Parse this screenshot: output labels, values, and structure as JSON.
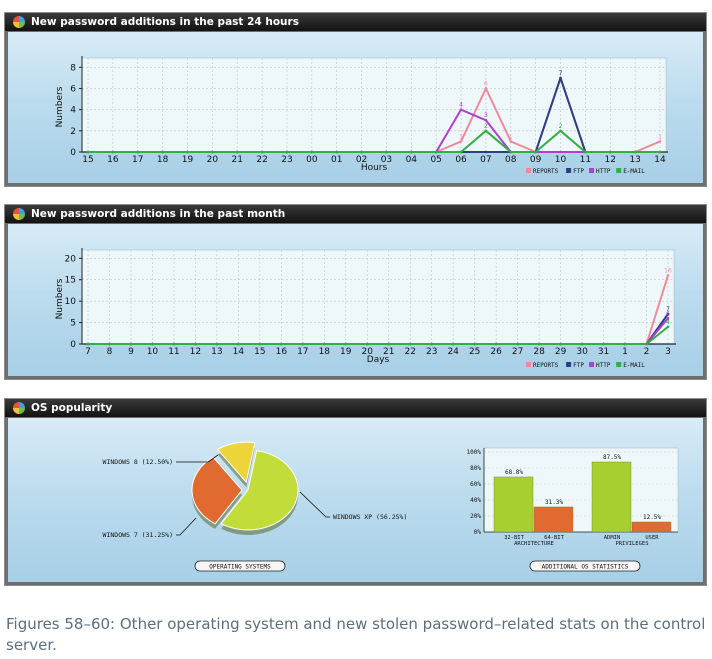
{
  "panels": {
    "p1": {
      "title": "New password additions in the past 24 hours"
    },
    "p2": {
      "title": "New password additions in the past month"
    },
    "p3": {
      "title": "OS popularity",
      "button_os": "OPERATING SYSTEMS",
      "button_stats": "ADDITIONAL OS STATISTICS"
    }
  },
  "caption": "Figures 58–60: Other operating system and new stolen password–related stats on the control server.",
  "chart_data": [
    {
      "type": "line",
      "title": "New password additions in the past 24 hours",
      "xlabel": "Hours",
      "ylabel": "Numbers",
      "categories": [
        "15",
        "16",
        "17",
        "18",
        "19",
        "20",
        "21",
        "22",
        "23",
        "00",
        "01",
        "02",
        "03",
        "04",
        "05",
        "06",
        "07",
        "08",
        "09",
        "10",
        "11",
        "12",
        "13",
        "14"
      ],
      "yticks": [
        0,
        2,
        4,
        6,
        8
      ],
      "ylim": [
        0,
        8.5
      ],
      "grid": true,
      "legend": "bottom-right",
      "series": [
        {
          "name": "REPORTS",
          "color": "#f08a9a",
          "values": [
            0,
            0,
            0,
            0,
            0,
            0,
            0,
            0,
            0,
            0,
            0,
            0,
            0,
            0,
            0,
            1,
            6,
            1,
            0,
            7,
            0,
            0,
            0,
            1
          ]
        },
        {
          "name": "FTP",
          "color": "#2b3f86",
          "values": [
            0,
            0,
            0,
            0,
            0,
            0,
            0,
            0,
            0,
            0,
            0,
            0,
            0,
            0,
            0,
            0,
            0,
            0,
            0,
            7,
            0,
            0,
            0,
            0
          ]
        },
        {
          "name": "HTTP",
          "color": "#b03fcc",
          "values": [
            0,
            0,
            0,
            0,
            0,
            0,
            0,
            0,
            0,
            0,
            0,
            0,
            0,
            0,
            0,
            4,
            3,
            0,
            0,
            0,
            0,
            0,
            0,
            0
          ]
        },
        {
          "name": "E-MAIL",
          "color": "#30b040",
          "values": [
            0,
            0,
            0,
            0,
            0,
            0,
            0,
            0,
            0,
            0,
            0,
            0,
            0,
            0,
            0,
            0,
            2,
            0,
            0,
            2,
            0,
            0,
            0,
            0
          ]
        }
      ]
    },
    {
      "type": "line",
      "title": "New password additions in the past month",
      "xlabel": "Days",
      "ylabel": "Numbers",
      "categories": [
        "7",
        "8",
        "9",
        "10",
        "11",
        "12",
        "13",
        "14",
        "15",
        "16",
        "17",
        "18",
        "19",
        "20",
        "21",
        "22",
        "23",
        "24",
        "25",
        "26",
        "27",
        "28",
        "29",
        "30",
        "31",
        "1",
        "2",
        "3"
      ],
      "yticks": [
        0,
        5,
        10,
        15,
        20
      ],
      "ylim": [
        0,
        21
      ],
      "grid": true,
      "legend": "bottom-right",
      "series": [
        {
          "name": "REPORTS",
          "color": "#f08a9a",
          "values": [
            0,
            0,
            0,
            0,
            0,
            0,
            0,
            0,
            0,
            0,
            0,
            0,
            0,
            0,
            0,
            0,
            0,
            0,
            0,
            0,
            0,
            0,
            0,
            0,
            0,
            0,
            0,
            16
          ]
        },
        {
          "name": "FTP",
          "color": "#2b3f86",
          "values": [
            0,
            0,
            0,
            0,
            0,
            0,
            0,
            0,
            0,
            0,
            0,
            0,
            0,
            0,
            0,
            0,
            0,
            0,
            0,
            0,
            0,
            0,
            0,
            0,
            0,
            0,
            0,
            7
          ]
        },
        {
          "name": "HTTP",
          "color": "#b03fcc",
          "values": [
            0,
            0,
            0,
            0,
            0,
            0,
            0,
            0,
            0,
            0,
            0,
            0,
            0,
            0,
            0,
            0,
            0,
            0,
            0,
            0,
            0,
            0,
            0,
            0,
            0,
            0,
            0,
            6
          ]
        },
        {
          "name": "E-MAIL",
          "color": "#30b040",
          "values": [
            0,
            0,
            0,
            0,
            0,
            0,
            0,
            0,
            0,
            0,
            0,
            0,
            0,
            0,
            0,
            0,
            0,
            0,
            0,
            0,
            0,
            0,
            0,
            0,
            0,
            0,
            0,
            4
          ]
        }
      ]
    },
    {
      "type": "pie",
      "title": "",
      "slices": [
        {
          "label": "WINDOWS XP (56.25%)",
          "value": 56.25,
          "color": "#c2dd3a"
        },
        {
          "label": "WINDOWS 7 (31.25%)",
          "value": 31.25,
          "color": "#e06a30"
        },
        {
          "label": "WINDOWS 8 (12.50%)",
          "value": 12.5,
          "color": "#ecd43a"
        }
      ]
    },
    {
      "type": "bar",
      "title": "",
      "yticks": [
        "0%",
        "20%",
        "40%",
        "60%",
        "80%",
        "100%"
      ],
      "ylim": [
        0,
        100
      ],
      "groups": [
        {
          "label": "ARCHITECTURE",
          "bars": [
            {
              "label": "32-BIT",
              "value": 68.8,
              "value_label": "68.8%",
              "color": "#a8cf30"
            },
            {
              "label": "64-BIT",
              "value": 31.3,
              "value_label": "31.3%",
              "color": "#e06a30"
            }
          ]
        },
        {
          "label": "PRIVILEGES",
          "bars": [
            {
              "label": "ADMIN",
              "value": 87.5,
              "value_label": "87.5%",
              "color": "#a8cf30"
            },
            {
              "label": "USER",
              "value": 12.5,
              "value_label": "12.5%",
              "color": "#e06a30"
            }
          ]
        }
      ]
    }
  ]
}
